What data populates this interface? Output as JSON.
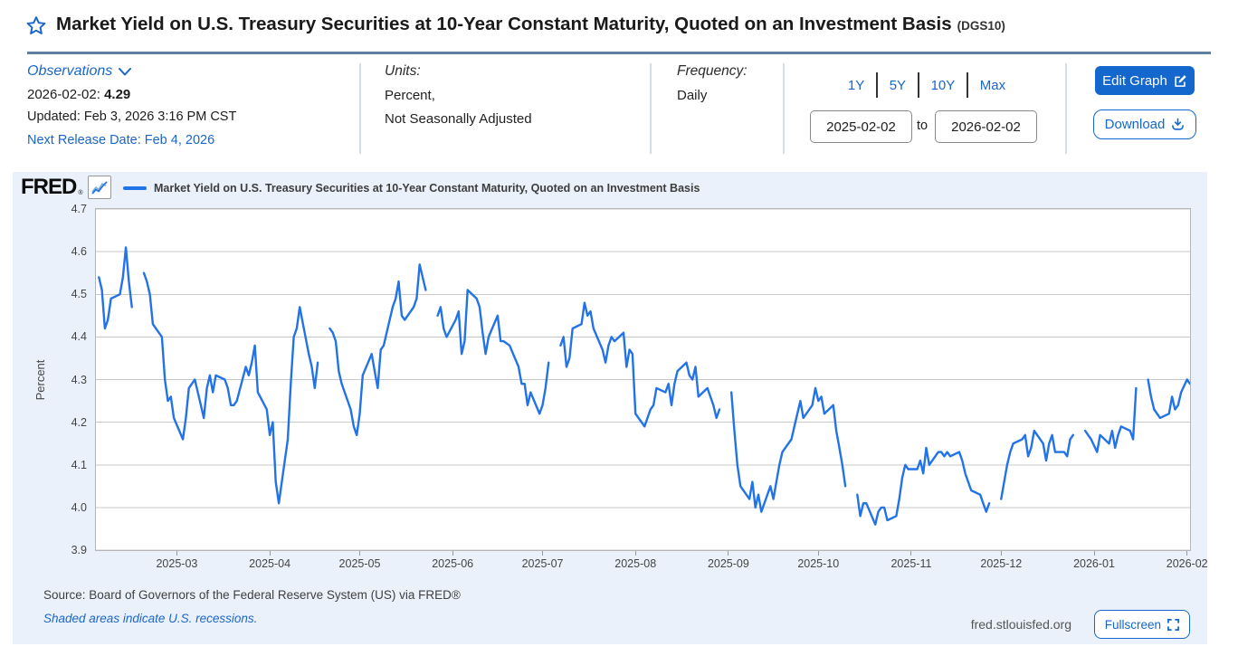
{
  "header": {
    "title": "Market Yield on U.S. Treasury Securities at 10-Year Constant Maturity, Quoted on an Investment Basis",
    "series_id": "(DGS10)"
  },
  "observations": {
    "label": "Observations",
    "latest_date": "2026-02-02:",
    "latest_value": "4.29",
    "updated": "Updated: Feb 3, 2026 3:16 PM CST",
    "next_release": "Next Release Date: Feb 4, 2026"
  },
  "units": {
    "label": "Units:",
    "value_line1": "Percent,",
    "value_line2": "Not Seasonally Adjusted"
  },
  "frequency": {
    "label": "Frequency:",
    "value": "Daily"
  },
  "range": {
    "presets": [
      "1Y",
      "5Y",
      "10Y",
      "Max"
    ],
    "start_date": "2025-02-02",
    "to_label": "to",
    "end_date": "2026-02-02"
  },
  "actions": {
    "edit_graph": "Edit Graph",
    "download": "Download"
  },
  "chart_header": {
    "logo": "FRED",
    "logo_mark": "®",
    "legend": "Market Yield on U.S. Treasury Securities at 10-Year Constant Maturity, Quoted on an Investment Basis"
  },
  "footer": {
    "source": "Source: Board of Governors of the Federal Reserve System (US) via FRED®",
    "note": "Shaded areas indicate U.S. recessions.",
    "site": "fred.stlouisfed.org",
    "fullscreen": "Fullscreen"
  },
  "colors": {
    "accent_blue": "#1b66c9",
    "button_blue": "#1467cc",
    "line_blue": "#2272e8",
    "gridline": "#c9c9c9",
    "panel_bg": "#eaf1fa",
    "title_rule": "#5e81a2"
  },
  "chart_data": {
    "type": "line",
    "title": "Market Yield on U.S. Treasury Securities at 10-Year Constant Maturity, Quoted on an Investment Basis",
    "ylabel": "Percent",
    "ylim": [
      3.9,
      4.7
    ],
    "ytick_step": 0.1,
    "grid": "horizontal",
    "legend_position": "top",
    "x_start": "2025-02-02",
    "x_end": "2026-02-02",
    "x_range_days": 365,
    "x_unit": "days since 2025-02-02",
    "gap_break_days": 3,
    "x_ticks": [
      {
        "label": "2025-03",
        "day": 27
      },
      {
        "label": "2025-04",
        "day": 58
      },
      {
        "label": "2025-05",
        "day": 88
      },
      {
        "label": "2025-06",
        "day": 119
      },
      {
        "label": "2025-07",
        "day": 149
      },
      {
        "label": "2025-08",
        "day": 180
      },
      {
        "label": "2025-09",
        "day": 211
      },
      {
        "label": "2025-10",
        "day": 241
      },
      {
        "label": "2025-11",
        "day": 272
      },
      {
        "label": "2025-12",
        "day": 302
      },
      {
        "label": "2026-01",
        "day": 333
      },
      {
        "label": "2026-02",
        "day": 364
      }
    ],
    "series": [
      {
        "name": "Market Yield on U.S. Treasury Securities at 10-Year Constant Maturity, Quoted on an Investment Basis",
        "color": "#2272e8",
        "points": [
          [
            1,
            4.54
          ],
          [
            2,
            4.51
          ],
          [
            3,
            4.42
          ],
          [
            4,
            4.44
          ],
          [
            5,
            4.49
          ],
          [
            8,
            4.5
          ],
          [
            9,
            4.54
          ],
          [
            10,
            4.61
          ],
          [
            11,
            4.53
          ],
          [
            12,
            4.47
          ],
          [
            16,
            4.55
          ],
          [
            17,
            4.53
          ],
          [
            18,
            4.5
          ],
          [
            19,
            4.43
          ],
          [
            22,
            4.4
          ],
          [
            23,
            4.3
          ],
          [
            24,
            4.25
          ],
          [
            25,
            4.26
          ],
          [
            26,
            4.21
          ],
          [
            29,
            4.16
          ],
          [
            30,
            4.21
          ],
          [
            31,
            4.28
          ],
          [
            32,
            4.29
          ],
          [
            33,
            4.3
          ],
          [
            36,
            4.21
          ],
          [
            37,
            4.28
          ],
          [
            38,
            4.31
          ],
          [
            39,
            4.27
          ],
          [
            40,
            4.31
          ],
          [
            43,
            4.3
          ],
          [
            44,
            4.28
          ],
          [
            45,
            4.24
          ],
          [
            46,
            4.24
          ],
          [
            47,
            4.25
          ],
          [
            50,
            4.33
          ],
          [
            51,
            4.31
          ],
          [
            52,
            4.34
          ],
          [
            53,
            4.38
          ],
          [
            54,
            4.27
          ],
          [
            57,
            4.23
          ],
          [
            58,
            4.17
          ],
          [
            59,
            4.2
          ],
          [
            60,
            4.06
          ],
          [
            61,
            4.01
          ],
          [
            64,
            4.16
          ],
          [
            65,
            4.29
          ],
          [
            66,
            4.4
          ],
          [
            67,
            4.42
          ],
          [
            68,
            4.47
          ],
          [
            71,
            4.36
          ],
          [
            72,
            4.33
          ],
          [
            73,
            4.28
          ],
          [
            74,
            4.34
          ],
          [
            78,
            4.42
          ],
          [
            79,
            4.41
          ],
          [
            80,
            4.39
          ],
          [
            81,
            4.32
          ],
          [
            82,
            4.29
          ],
          [
            85,
            4.23
          ],
          [
            86,
            4.19
          ],
          [
            87,
            4.17
          ],
          [
            88,
            4.22
          ],
          [
            89,
            4.31
          ],
          [
            92,
            4.36
          ],
          [
            93,
            4.32
          ],
          [
            94,
            4.28
          ],
          [
            95,
            4.37
          ],
          [
            96,
            4.38
          ],
          [
            99,
            4.47
          ],
          [
            100,
            4.49
          ],
          [
            101,
            4.53
          ],
          [
            102,
            4.45
          ],
          [
            103,
            4.44
          ],
          [
            106,
            4.47
          ],
          [
            107,
            4.49
          ],
          [
            108,
            4.57
          ],
          [
            109,
            4.54
          ],
          [
            110,
            4.51
          ],
          [
            114,
            4.45
          ],
          [
            115,
            4.47
          ],
          [
            116,
            4.42
          ],
          [
            117,
            4.4
          ],
          [
            120,
            4.44
          ],
          [
            121,
            4.46
          ],
          [
            122,
            4.36
          ],
          [
            123,
            4.39
          ],
          [
            124,
            4.51
          ],
          [
            127,
            4.49
          ],
          [
            128,
            4.47
          ],
          [
            129,
            4.41
          ],
          [
            130,
            4.36
          ],
          [
            131,
            4.4
          ],
          [
            134,
            4.45
          ],
          [
            135,
            4.39
          ],
          [
            136,
            4.39
          ],
          [
            138,
            4.38
          ],
          [
            141,
            4.33
          ],
          [
            142,
            4.29
          ],
          [
            143,
            4.29
          ],
          [
            144,
            4.24
          ],
          [
            145,
            4.27
          ],
          [
            148,
            4.22
          ],
          [
            149,
            4.24
          ],
          [
            150,
            4.28
          ],
          [
            151,
            4.34
          ],
          [
            155,
            4.38
          ],
          [
            156,
            4.4
          ],
          [
            157,
            4.33
          ],
          [
            158,
            4.35
          ],
          [
            159,
            4.42
          ],
          [
            162,
            4.43
          ],
          [
            163,
            4.48
          ],
          [
            164,
            4.45
          ],
          [
            165,
            4.46
          ],
          [
            166,
            4.42
          ],
          [
            169,
            4.37
          ],
          [
            170,
            4.34
          ],
          [
            171,
            4.38
          ],
          [
            172,
            4.4
          ],
          [
            173,
            4.39
          ],
          [
            176,
            4.41
          ],
          [
            177,
            4.33
          ],
          [
            178,
            4.37
          ],
          [
            179,
            4.36
          ],
          [
            180,
            4.22
          ],
          [
            183,
            4.19
          ],
          [
            184,
            4.21
          ],
          [
            185,
            4.23
          ],
          [
            186,
            4.24
          ],
          [
            187,
            4.28
          ],
          [
            190,
            4.27
          ],
          [
            191,
            4.29
          ],
          [
            192,
            4.24
          ],
          [
            193,
            4.29
          ],
          [
            194,
            4.32
          ],
          [
            197,
            4.34
          ],
          [
            198,
            4.31
          ],
          [
            199,
            4.3
          ],
          [
            200,
            4.33
          ],
          [
            201,
            4.26
          ],
          [
            204,
            4.28
          ],
          [
            205,
            4.26
          ],
          [
            206,
            4.24
          ],
          [
            207,
            4.21
          ],
          [
            208,
            4.23
          ],
          [
            212,
            4.27
          ],
          [
            213,
            4.18
          ],
          [
            214,
            4.1
          ],
          [
            215,
            4.05
          ],
          [
            218,
            4.02
          ],
          [
            219,
            4.06
          ],
          [
            220,
            4.0
          ],
          [
            221,
            4.03
          ],
          [
            222,
            3.99
          ],
          [
            225,
            4.05
          ],
          [
            226,
            4.02
          ],
          [
            227,
            4.06
          ],
          [
            228,
            4.1
          ],
          [
            229,
            4.13
          ],
          [
            232,
            4.16
          ],
          [
            233,
            4.19
          ],
          [
            234,
            4.22
          ],
          [
            235,
            4.25
          ],
          [
            236,
            4.21
          ],
          [
            239,
            4.24
          ],
          [
            240,
            4.28
          ],
          [
            241,
            4.25
          ],
          [
            242,
            4.26
          ],
          [
            243,
            4.22
          ],
          [
            246,
            4.24
          ],
          [
            247,
            4.18
          ],
          [
            248,
            4.14
          ],
          [
            249,
            4.1
          ],
          [
            250,
            4.05
          ],
          [
            254,
            4.03
          ],
          [
            255,
            3.98
          ],
          [
            256,
            4.01
          ],
          [
            257,
            4.01
          ],
          [
            260,
            3.96
          ],
          [
            261,
            3.99
          ],
          [
            262,
            4.0
          ],
          [
            263,
            4.0
          ],
          [
            264,
            3.97
          ],
          [
            267,
            3.98
          ],
          [
            268,
            4.02
          ],
          [
            269,
            4.07
          ],
          [
            270,
            4.1
          ],
          [
            271,
            4.09
          ],
          [
            274,
            4.09
          ],
          [
            275,
            4.11
          ],
          [
            276,
            4.08
          ],
          [
            277,
            4.14
          ],
          [
            278,
            4.1
          ],
          [
            281,
            4.13
          ],
          [
            282,
            4.13
          ],
          [
            283,
            4.12
          ],
          [
            284,
            4.13
          ],
          [
            285,
            4.12
          ],
          [
            288,
            4.13
          ],
          [
            289,
            4.11
          ],
          [
            290,
            4.08
          ],
          [
            291,
            4.06
          ],
          [
            292,
            4.04
          ],
          [
            295,
            4.03
          ],
          [
            296,
            4.01
          ],
          [
            297,
            3.99
          ],
          [
            298,
            4.01
          ],
          [
            302,
            4.02
          ],
          [
            303,
            4.06
          ],
          [
            304,
            4.1
          ],
          [
            305,
            4.13
          ],
          [
            306,
            4.15
          ],
          [
            309,
            4.16
          ],
          [
            310,
            4.17
          ],
          [
            311,
            4.12
          ],
          [
            312,
            4.14
          ],
          [
            313,
            4.18
          ],
          [
            316,
            4.15
          ],
          [
            317,
            4.11
          ],
          [
            318,
            4.15
          ],
          [
            319,
            4.17
          ],
          [
            320,
            4.13
          ],
          [
            323,
            4.13
          ],
          [
            324,
            4.12
          ],
          [
            325,
            4.16
          ],
          [
            326,
            4.17
          ],
          [
            330,
            4.18
          ],
          [
            331,
            4.17
          ],
          [
            332,
            4.16
          ],
          [
            334,
            4.13
          ],
          [
            335,
            4.17
          ],
          [
            338,
            4.15
          ],
          [
            339,
            4.18
          ],
          [
            340,
            4.14
          ],
          [
            341,
            4.17
          ],
          [
            342,
            4.19
          ],
          [
            345,
            4.18
          ],
          [
            346,
            4.16
          ],
          [
            347,
            4.28
          ],
          [
            351,
            4.3
          ],
          [
            352,
            4.26
          ],
          [
            353,
            4.23
          ],
          [
            354,
            4.22
          ],
          [
            355,
            4.21
          ],
          [
            358,
            4.22
          ],
          [
            359,
            4.26
          ],
          [
            360,
            4.23
          ],
          [
            361,
            4.24
          ],
          [
            362,
            4.27
          ],
          [
            364,
            4.3
          ],
          [
            365,
            4.29
          ]
        ]
      }
    ]
  }
}
